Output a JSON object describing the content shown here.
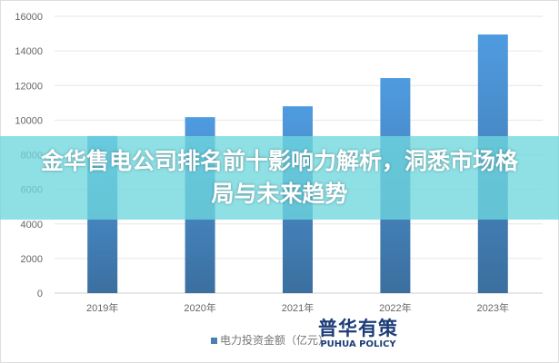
{
  "chart_data": {
    "type": "bar",
    "categories": [
      "2019年",
      "2020年",
      "2021年",
      "2022年",
      "2023年"
    ],
    "series": [
      {
        "name": "电力投资金额（亿元）",
        "values": [
          9080,
          10170,
          10800,
          12430,
          14950
        ]
      }
    ],
    "ylim": [
      0,
      16000
    ],
    "yticks": [
      0,
      2000,
      4000,
      6000,
      8000,
      10000,
      12000,
      14000,
      16000
    ],
    "grid": true,
    "legend": "bottom",
    "bar_color": "#4a8fd6"
  },
  "banner": {
    "title": "金华售电公司排名前十影响力解析，洞悉市场格局与未来趋势"
  },
  "legend_label": "电力投资金额（亿元）",
  "logo": {
    "cn": "普华有策",
    "en": "PUHUA POLICY"
  }
}
